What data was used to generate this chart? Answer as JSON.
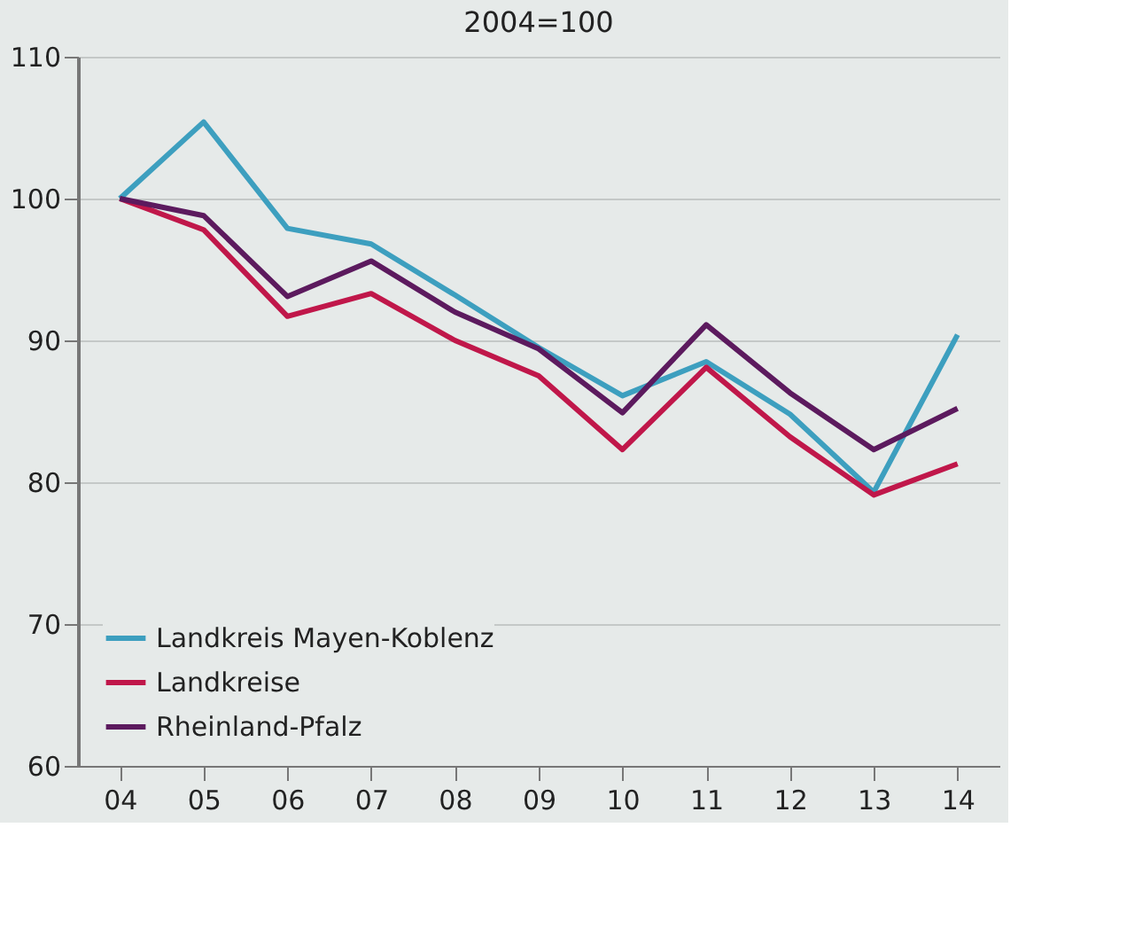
{
  "chart_data": {
    "type": "line",
    "title": "2004=100",
    "categories": [
      "04",
      "05",
      "06",
      "07",
      "08",
      "09",
      "10",
      "11",
      "12",
      "13",
      "14"
    ],
    "series": [
      {
        "name": "Landkreis Mayen-Koblenz",
        "color": "#3d9fbf",
        "values": [
          100,
          105.4,
          97.9,
          96.8,
          93.2,
          89.5,
          86.1,
          88.5,
          84.8,
          79.3,
          90.4
        ]
      },
      {
        "name": "Landkreise",
        "color": "#c0174a",
        "values": [
          100,
          97.8,
          91.7,
          93.3,
          90,
          87.5,
          82.3,
          88.1,
          83.2,
          79.1,
          81.3
        ]
      },
      {
        "name": "Rheinland-Pfalz",
        "color": "#5c1a5e",
        "values": [
          100,
          98.8,
          93.1,
          95.6,
          92,
          89.4,
          84.9,
          91.1,
          86.3,
          82.3,
          85.2
        ]
      }
    ],
    "ylim": [
      60,
      110
    ],
    "yticks": [
      60,
      70,
      80,
      90,
      100,
      110
    ],
    "grid": "y",
    "legend": "bottom left",
    "marker": "none",
    "line_style": "solid"
  }
}
